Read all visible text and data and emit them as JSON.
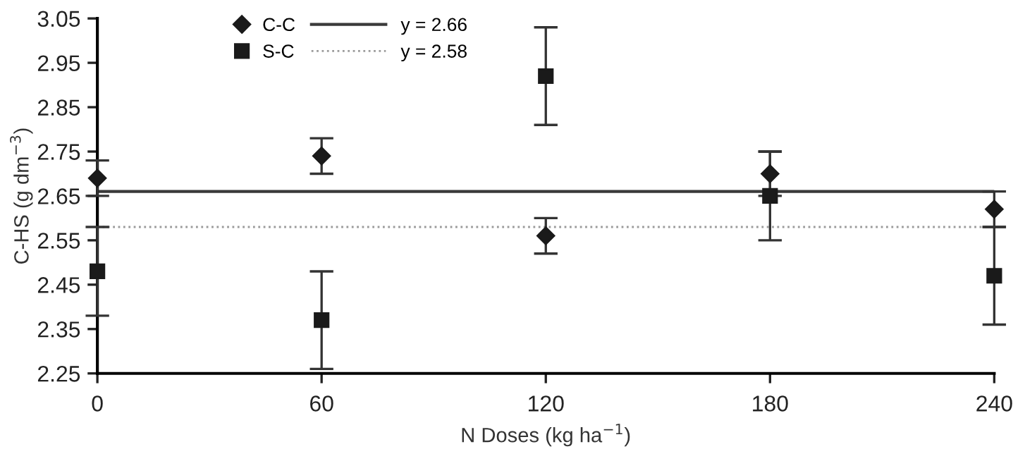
{
  "chart_data": {
    "type": "scatter",
    "xlabel": "N Doses (kg ha$^{−1}$)",
    "ylabel": "C-HS (g dm$^{−3}$)",
    "x": [
      0,
      60,
      120,
      180,
      240
    ],
    "series": [
      {
        "name": "C-C",
        "color": "#1a1a1a",
        "marker": "diamond",
        "values": [
          2.69,
          2.74,
          2.56,
          2.7,
          2.62
        ],
        "errors": [
          0.04,
          0.04,
          0.04,
          0.05,
          0.04
        ]
      },
      {
        "name": "S-C",
        "color": "#1a1a1a",
        "marker": "square",
        "values": [
          2.48,
          2.37,
          2.92,
          2.65,
          2.47
        ],
        "errors": [
          0.1,
          0.11,
          0.11,
          0.1,
          0.11
        ]
      }
    ],
    "ref_lines": [
      {
        "axis": "y",
        "value": 2.66,
        "label": "y = 2.66",
        "color": "#3a3a3a",
        "line_style": "solid"
      },
      {
        "axis": "y",
        "value": 2.58,
        "label": "y = 2.58",
        "color": "#9a9a9a",
        "line_style": "dotted"
      }
    ],
    "xlim": [
      0,
      240
    ],
    "xticks": [
      0,
      60,
      120,
      180,
      240
    ],
    "ylim": [
      2.25,
      3.05
    ],
    "yticks": [
      2.25,
      2.35,
      2.45,
      2.55,
      2.65,
      2.75,
      2.85,
      2.95,
      3.05
    ],
    "legend": "top left",
    "grid": false
  }
}
